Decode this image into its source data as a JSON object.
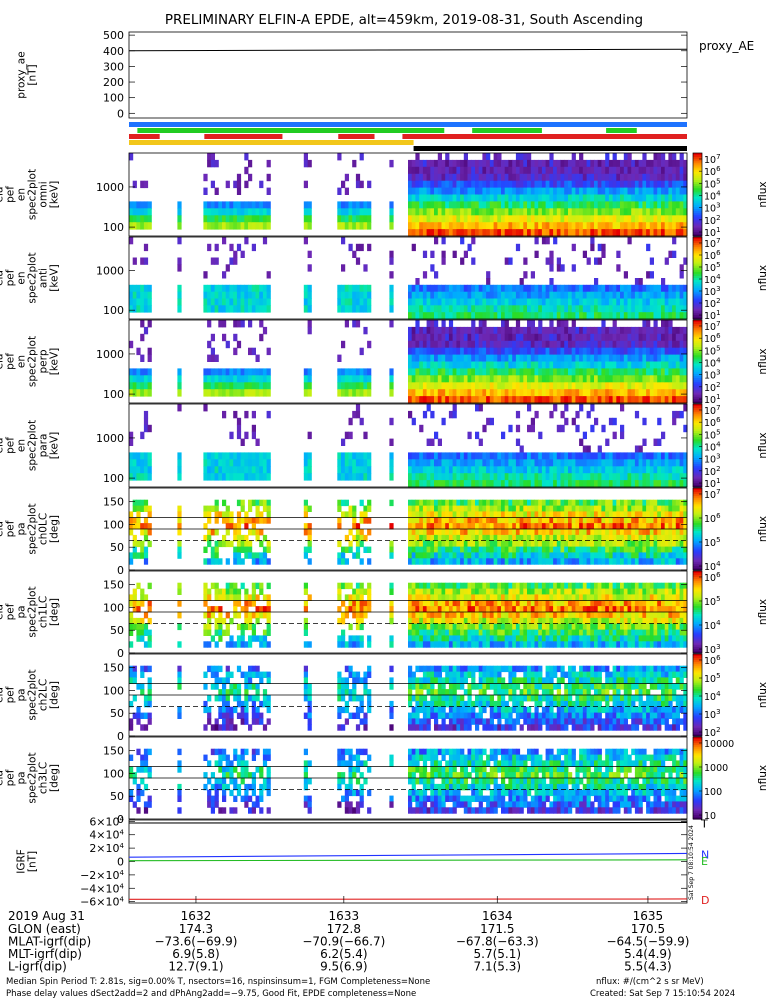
{
  "title": "PRELIMINARY ELFIN-A EPDE, alt=459km, 2019-08-31, South Ascending",
  "chart_data": [
    {
      "type": "line",
      "id": "proxy_ae",
      "ylabel_lines": [
        "proxy_ae",
        "[nT]"
      ],
      "right_label": "proxy_AE",
      "yticks": [
        "500",
        "400",
        "300",
        "200",
        "100",
        "0"
      ],
      "ylim": [
        -30,
        520
      ],
      "x": [
        0,
        1
      ],
      "values": [
        400,
        410
      ]
    },
    {
      "type": "bars",
      "id": "status_bars",
      "rows": [
        {
          "color": "#1e73ff",
          "segments": [
            [
              0,
              1
            ]
          ]
        },
        {
          "color": "#22cc22",
          "segments": [
            [
              0.015,
              0.565
            ],
            [
              0.615,
              0.74
            ],
            [
              0.855,
              0.91
            ]
          ]
        },
        {
          "color": "#e02020",
          "segments": [
            [
              0,
              0.055
            ],
            [
              0.135,
              0.275
            ],
            [
              0.375,
              0.44
            ],
            [
              0.49,
              1
            ]
          ]
        },
        {
          "color": "#f2c71b",
          "segments": [
            [
              0,
              0.51
            ]
          ]
        },
        {
          "color": "#000000",
          "segments": [
            [
              0.51,
              1
            ]
          ]
        }
      ]
    },
    {
      "type": "heatmap",
      "id": "spec_omni",
      "ylabel_lines": [
        "ela",
        "pef",
        "en",
        "spec2plot",
        "omni",
        "[keV]"
      ],
      "yticks": [
        "1000",
        "100"
      ],
      "ylog": true,
      "ylim": [
        60,
        7000
      ],
      "colorbar": {
        "label": "nflux",
        "ticks": [
          "10^7",
          "10^6",
          "10^5",
          "10^4",
          "10^3",
          "10^2",
          "10^1"
        ]
      },
      "intensity": "high"
    },
    {
      "type": "heatmap",
      "id": "spec_anti",
      "ylabel_lines": [
        "ela",
        "pef",
        "en",
        "spec2plot",
        "anti",
        "[keV]"
      ],
      "yticks": [
        "1000",
        "100"
      ],
      "ylog": true,
      "ylim": [
        60,
        7000
      ],
      "colorbar": {
        "label": "nflux",
        "ticks": [
          "10^7",
          "10^6",
          "10^5",
          "10^4",
          "10^3",
          "10^2",
          "10^1"
        ]
      },
      "intensity": "low"
    },
    {
      "type": "heatmap",
      "id": "spec_perp",
      "ylabel_lines": [
        "ela",
        "pef",
        "en",
        "spec2plot",
        "perp",
        "[keV]"
      ],
      "yticks": [
        "1000",
        "100"
      ],
      "ylog": true,
      "ylim": [
        60,
        7000
      ],
      "colorbar": {
        "label": "nflux",
        "ticks": [
          "10^7",
          "10^6",
          "10^5",
          "10^4",
          "10^3",
          "10^2",
          "10^1"
        ]
      },
      "intensity": "high"
    },
    {
      "type": "heatmap",
      "id": "spec_para",
      "ylabel_lines": [
        "ela",
        "pef",
        "en",
        "spec2plot",
        "para",
        "[keV]"
      ],
      "yticks": [
        "1000",
        "100"
      ],
      "ylog": true,
      "ylim": [
        60,
        7000
      ],
      "colorbar": {
        "label": "nflux",
        "ticks": [
          "10^7",
          "10^6",
          "10^5",
          "10^4",
          "10^3",
          "10^2",
          "10^1"
        ]
      },
      "intensity": "low"
    },
    {
      "type": "heatmap",
      "id": "pa_ch0",
      "ylabel_lines": [
        "ela",
        "pef",
        "pa",
        "spec2plot",
        "ch0LC",
        "[deg]"
      ],
      "yticks": [
        "150",
        "100",
        "50",
        "0"
      ],
      "ylim": [
        0,
        180
      ],
      "colorbar": {
        "label": "nflux",
        "ticks": [
          "10^7",
          "10^6",
          "10^5",
          "10^4"
        ]
      },
      "intensity": "pa"
    },
    {
      "type": "heatmap",
      "id": "pa_ch1",
      "ylabel_lines": [
        "ela",
        "pef",
        "pa",
        "spec2plot",
        "ch1LC",
        "[deg]"
      ],
      "yticks": [
        "150",
        "100",
        "50",
        "0"
      ],
      "ylim": [
        0,
        180
      ],
      "colorbar": {
        "label": "nflux",
        "ticks": [
          "10^6",
          "10^5",
          "10^4",
          "10^3"
        ]
      },
      "intensity": "pa"
    },
    {
      "type": "heatmap",
      "id": "pa_ch2",
      "ylabel_lines": [
        "ela",
        "pef",
        "pa",
        "spec2plot",
        "ch2LC",
        "[deg]"
      ],
      "yticks": [
        "150",
        "100",
        "50",
        "0"
      ],
      "ylim": [
        0,
        180
      ],
      "colorbar": {
        "label": "nflux",
        "ticks": [
          "10^6",
          "10^5",
          "10^4",
          "10^3",
          "10^2"
        ]
      },
      "intensity": "pa-low"
    },
    {
      "type": "heatmap",
      "id": "pa_ch3",
      "ylabel_lines": [
        "ela",
        "pef",
        "pa",
        "spec2plot",
        "ch3LC",
        "[deg]"
      ],
      "yticks": [
        "150",
        "100",
        "50",
        "0"
      ],
      "ylim": [
        0,
        180
      ],
      "colorbar": {
        "label": "nflux",
        "ticks": [
          "10000",
          "1000",
          "100",
          "10"
        ]
      },
      "intensity": "pa-low"
    },
    {
      "type": "line",
      "id": "igrf",
      "ylabel_lines": [
        "IGRF",
        "[nT]"
      ],
      "yticks": [
        "6×10^4",
        "4×10^4",
        "2×10^4",
        "0",
        "−2×10^4",
        "−4×10^4",
        "−6×10^4"
      ],
      "ylim": [
        -62000,
        62000
      ],
      "series": [
        {
          "name": "T",
          "color": "#000000",
          "x": [
            0,
            1
          ],
          "values": [
            57500,
            58300
          ]
        },
        {
          "name": "N",
          "color": "#2233ff",
          "x": [
            0,
            1
          ],
          "values": [
            6500,
            12000
          ]
        },
        {
          "name": "E",
          "color": "#22bb22",
          "x": [
            0,
            1
          ],
          "values": [
            1200,
            2500
          ]
        },
        {
          "name": "D",
          "color": "#e02020",
          "x": [
            0,
            1
          ],
          "values": [
            -56500,
            -56000
          ]
        }
      ]
    }
  ],
  "footer": {
    "date": "2019 Aug 31",
    "rows": [
      {
        "label": "GLON (east)",
        "values": [
          "174.3",
          "172.8",
          "171.5",
          "170.5"
        ]
      },
      {
        "label": "MLAT-igrf(dip)",
        "values": [
          "−73.6(−69.9)",
          "−70.9(−66.7)",
          "−67.8(−63.3)",
          "−64.5(−59.9)"
        ]
      },
      {
        "label": "MLT-igrf(dip)",
        "values": [
          "6.9(5.8)",
          "6.2(5.4)",
          "5.7(5.1)",
          "5.4(4.9)"
        ]
      },
      {
        "label": "L-igrf(dip)",
        "values": [
          "12.7(9.1)",
          "9.5(6.9)",
          "7.1(5.3)",
          "5.5(4.3)"
        ]
      }
    ],
    "times": [
      "1632",
      "1633",
      "1634",
      "1635"
    ],
    "note1": "Median Spin Period T: 2.81s, sig=0.00% T, nsectors=16, nspinsinsum=1, FGM Completeness=None",
    "note2": "Phase delay values dSect2add=2 and dPhAng2add=−9.75, Good Fit, EPDE completeness=None",
    "units": "nflux: #/(cm^2 s sr MeV)",
    "created": "Created: Sat Sep  7 15:10:54 2024",
    "side_stamp": "Sat Sep  7 08:10:54 2024"
  }
}
